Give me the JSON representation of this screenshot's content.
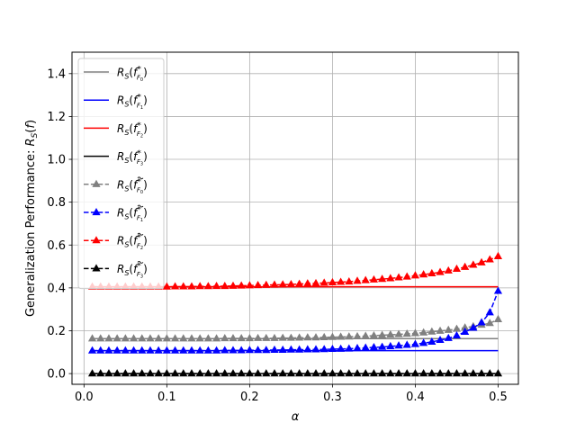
{
  "chart_data": {
    "type": "line",
    "title": "",
    "xlabel": "α",
    "ylabel": "Generalization Performance: R_S(f)",
    "xlim": [
      -0.0145,
      0.5245
    ],
    "ylim": [
      -0.05,
      1.5
    ],
    "xticks": [
      0.0,
      0.1,
      0.2,
      0.3,
      0.4,
      0.5
    ],
    "xtick_labels": [
      "0.0",
      "0.1",
      "0.2",
      "0.3",
      "0.4",
      "0.5"
    ],
    "yticks": [
      0.0,
      0.2,
      0.4,
      0.6,
      0.8,
      1.0,
      1.2,
      1.4
    ],
    "ytick_labels": [
      "0.0",
      "0.2",
      "0.4",
      "0.6",
      "0.8",
      "1.0",
      "1.2",
      "1.4"
    ],
    "grid": true,
    "legend_position": "upper-left",
    "x": [
      0.01,
      0.02,
      0.03,
      0.04,
      0.05,
      0.06,
      0.07,
      0.08,
      0.09,
      0.1,
      0.11,
      0.12,
      0.13,
      0.14,
      0.15,
      0.16,
      0.17,
      0.18,
      0.19,
      0.2,
      0.21,
      0.22,
      0.23,
      0.24,
      0.25,
      0.26,
      0.27,
      0.28,
      0.29,
      0.3,
      0.31,
      0.32,
      0.33,
      0.34,
      0.35,
      0.36,
      0.37,
      0.38,
      0.39,
      0.4,
      0.41,
      0.42,
      0.43,
      0.44,
      0.45,
      0.46,
      0.47,
      0.48,
      0.49,
      0.5
    ],
    "series": [
      {
        "name": "R_S(f*_F0)",
        "color": "#808080",
        "style": "solid",
        "marker": "none",
        "values": [
          0.163,
          0.163,
          0.163,
          0.163,
          0.163,
          0.163,
          0.163,
          0.163,
          0.163,
          0.163,
          0.163,
          0.163,
          0.163,
          0.163,
          0.163,
          0.163,
          0.163,
          0.163,
          0.163,
          0.163,
          0.163,
          0.163,
          0.163,
          0.163,
          0.163,
          0.163,
          0.163,
          0.163,
          0.163,
          0.163,
          0.163,
          0.163,
          0.163,
          0.163,
          0.163,
          0.163,
          0.163,
          0.163,
          0.163,
          0.163,
          0.163,
          0.163,
          0.163,
          0.163,
          0.163,
          0.163,
          0.163,
          0.163,
          0.163,
          0.163
        ]
      },
      {
        "name": "R_S(f*_F1)",
        "color": "#0000ff",
        "style": "solid",
        "marker": "none",
        "values": [
          0.107,
          0.107,
          0.107,
          0.107,
          0.107,
          0.107,
          0.107,
          0.107,
          0.107,
          0.107,
          0.107,
          0.107,
          0.107,
          0.107,
          0.107,
          0.107,
          0.107,
          0.107,
          0.107,
          0.107,
          0.107,
          0.107,
          0.107,
          0.107,
          0.107,
          0.107,
          0.107,
          0.107,
          0.107,
          0.107,
          0.107,
          0.107,
          0.107,
          0.107,
          0.107,
          0.107,
          0.107,
          0.107,
          0.107,
          0.107,
          0.107,
          0.107,
          0.107,
          0.107,
          0.107,
          0.107,
          0.107,
          0.107,
          0.107,
          0.107
        ]
      },
      {
        "name": "R_S(f*_F2)",
        "color": "#ff0000",
        "style": "solid",
        "marker": "none",
        "values": [
          0.405,
          0.405,
          0.405,
          0.405,
          0.405,
          0.405,
          0.405,
          0.405,
          0.405,
          0.405,
          0.405,
          0.405,
          0.405,
          0.405,
          0.405,
          0.405,
          0.405,
          0.405,
          0.405,
          0.405,
          0.405,
          0.405,
          0.405,
          0.405,
          0.405,
          0.405,
          0.405,
          0.405,
          0.405,
          0.405,
          0.405,
          0.405,
          0.405,
          0.405,
          0.405,
          0.405,
          0.405,
          0.405,
          0.405,
          0.405,
          0.405,
          0.405,
          0.405,
          0.405,
          0.405,
          0.405,
          0.405,
          0.405,
          0.405,
          0.405
        ]
      },
      {
        "name": "R_S(f*_F3)",
        "color": "#000000",
        "style": "solid",
        "marker": "none",
        "values": [
          0.0,
          0.0,
          0.0,
          0.0,
          0.0,
          0.0,
          0.0,
          0.0,
          0.0,
          0.0,
          0.0,
          0.0,
          0.0,
          0.0,
          0.0,
          0.0,
          0.0,
          0.0,
          0.0,
          0.0,
          0.0,
          0.0,
          0.0,
          0.0,
          0.0,
          0.0,
          0.0,
          0.0,
          0.0,
          0.0,
          0.0,
          0.0,
          0.0,
          0.0,
          0.0,
          0.0,
          0.0,
          0.0,
          0.0,
          0.0,
          0.0,
          0.0,
          0.0,
          0.0,
          0.0,
          0.0,
          0.0,
          0.0,
          0.0,
          0.0
        ]
      },
      {
        "name": "R_S(f̃*_F0)",
        "color": "#808080",
        "style": "dashed",
        "marker": "triangle",
        "values": [
          0.163,
          0.163,
          0.163,
          0.163,
          0.163,
          0.163,
          0.163,
          0.163,
          0.163,
          0.163,
          0.163,
          0.163,
          0.163,
          0.163,
          0.163,
          0.163,
          0.164,
          0.164,
          0.164,
          0.164,
          0.165,
          0.165,
          0.165,
          0.166,
          0.166,
          0.167,
          0.168,
          0.168,
          0.169,
          0.17,
          0.171,
          0.172,
          0.173,
          0.175,
          0.177,
          0.179,
          0.181,
          0.183,
          0.185,
          0.188,
          0.191,
          0.195,
          0.199,
          0.203,
          0.208,
          0.214,
          0.22,
          0.227,
          0.235,
          0.253
        ]
      },
      {
        "name": "R_S(f̃*_F1)",
        "color": "#0000ff",
        "style": "dashed",
        "marker": "triangle",
        "values": [
          0.107,
          0.107,
          0.107,
          0.107,
          0.107,
          0.107,
          0.107,
          0.107,
          0.107,
          0.107,
          0.107,
          0.107,
          0.107,
          0.107,
          0.107,
          0.107,
          0.108,
          0.108,
          0.108,
          0.109,
          0.109,
          0.109,
          0.11,
          0.11,
          0.111,
          0.111,
          0.112,
          0.112,
          0.113,
          0.114,
          0.115,
          0.116,
          0.118,
          0.12,
          0.122,
          0.124,
          0.127,
          0.13,
          0.133,
          0.137,
          0.142,
          0.148,
          0.156,
          0.165,
          0.177,
          0.194,
          0.213,
          0.238,
          0.285,
          0.385
        ]
      },
      {
        "name": "R_S(f̃*_F2)",
        "color": "#ff0000",
        "style": "dashed",
        "marker": "triangle",
        "values": [
          0.405,
          0.405,
          0.405,
          0.405,
          0.405,
          0.405,
          0.405,
          0.405,
          0.405,
          0.405,
          0.406,
          0.406,
          0.406,
          0.407,
          0.407,
          0.408,
          0.408,
          0.409,
          0.41,
          0.411,
          0.412,
          0.413,
          0.414,
          0.415,
          0.416,
          0.418,
          0.42,
          0.421,
          0.423,
          0.425,
          0.427,
          0.429,
          0.432,
          0.435,
          0.438,
          0.441,
          0.444,
          0.448,
          0.452,
          0.457,
          0.462,
          0.467,
          0.473,
          0.48,
          0.488,
          0.497,
          0.507,
          0.518,
          0.532,
          0.547
        ]
      },
      {
        "name": "R_S(f̃*_F3)",
        "color": "#000000",
        "style": "dashed",
        "marker": "triangle",
        "values": [
          0.0,
          0.0,
          0.0,
          0.0,
          0.0,
          0.0,
          0.0,
          0.0,
          0.0,
          0.0,
          0.0,
          0.0,
          0.0,
          0.0,
          0.0,
          0.0,
          0.0,
          0.0,
          0.0,
          0.0,
          0.0,
          0.0,
          0.0,
          0.0,
          0.0,
          0.0,
          0.0,
          0.0,
          0.0,
          0.0,
          0.0,
          0.0,
          0.0,
          0.0,
          0.0,
          0.0,
          0.0,
          0.0,
          0.0,
          0.0,
          0.0,
          0.0,
          0.0,
          0.0,
          0.0,
          0.0,
          0.0,
          0.0,
          0.0,
          0.0
        ]
      }
    ],
    "legend": [
      {
        "r": "R",
        "s": "S",
        "f": "f",
        "star": "*",
        "cal": "F",
        "idx": "0",
        "tilde": false
      },
      {
        "r": "R",
        "s": "S",
        "f": "f",
        "star": "*",
        "cal": "F",
        "idx": "1",
        "tilde": false
      },
      {
        "r": "R",
        "s": "S",
        "f": "f",
        "star": "*",
        "cal": "F",
        "idx": "2",
        "tilde": false
      },
      {
        "r": "R",
        "s": "S",
        "f": "f",
        "star": "*",
        "cal": "F",
        "idx": "3",
        "tilde": false
      },
      {
        "r": "R",
        "s": "S",
        "f": "f",
        "star": "*",
        "cal": "F",
        "idx": "0",
        "tilde": true
      },
      {
        "r": "R",
        "s": "S",
        "f": "f",
        "star": "*",
        "cal": "F",
        "idx": "1",
        "tilde": true
      },
      {
        "r": "R",
        "s": "S",
        "f": "f",
        "star": "*",
        "cal": "F",
        "idx": "2",
        "tilde": true
      },
      {
        "r": "R",
        "s": "S",
        "f": "f",
        "star": "*",
        "cal": "F",
        "idx": "3",
        "tilde": true
      }
    ]
  },
  "colors": {
    "grid": "#b0b0b0",
    "axes": "#000000",
    "legend_border": "#cccccc"
  }
}
